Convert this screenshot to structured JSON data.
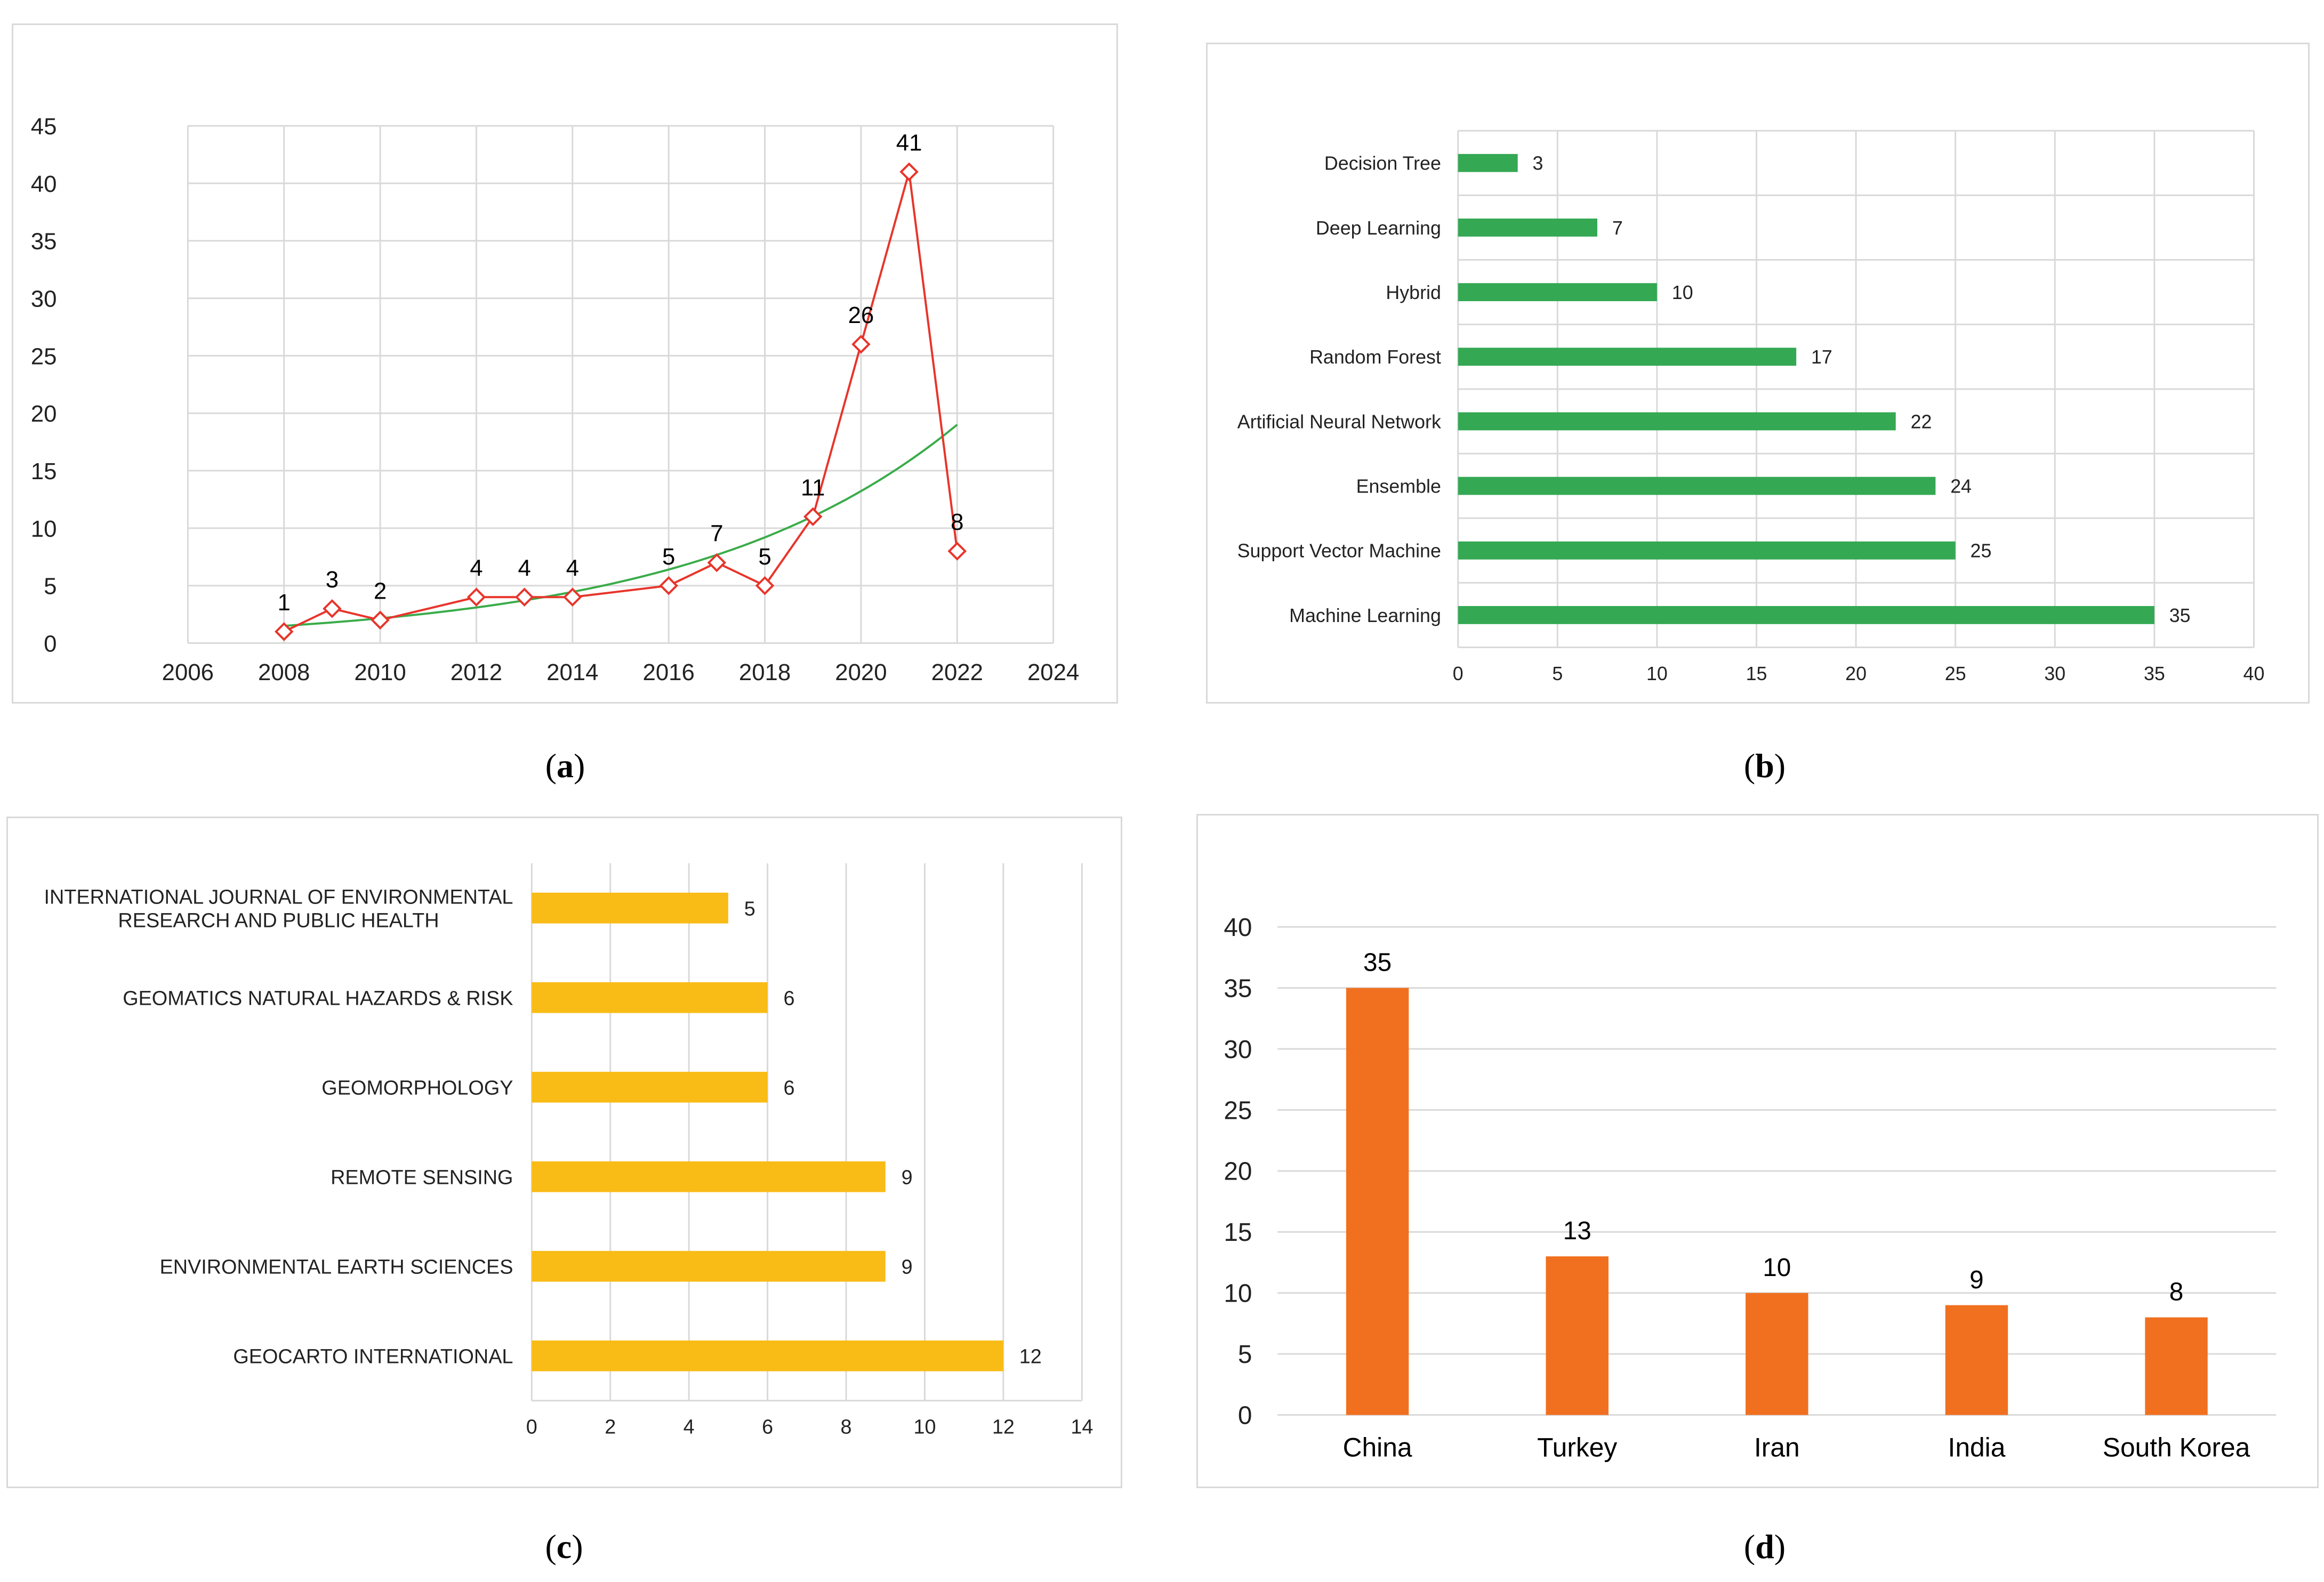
{
  "colors": {
    "red_line": "#e8352b",
    "trend_line": "#3aac4a",
    "green_bar": "#34a853",
    "yellow_bar": "#f9bb16",
    "orange_bar": "#f07020",
    "grid": "#d9d9d9",
    "axis_text": "#222222"
  },
  "chart_data": [
    {
      "id": "a",
      "type": "line",
      "title": "",
      "xlabel": "",
      "ylabel": "",
      "x": [
        2008,
        2009,
        2010,
        2012,
        2013,
        2014,
        2016,
        2017,
        2018,
        2019,
        2020,
        2021,
        2022
      ],
      "values": [
        1,
        3,
        2,
        4,
        4,
        4,
        5,
        7,
        5,
        11,
        26,
        41,
        8
      ],
      "data_labels": [
        "1",
        "3",
        "2",
        "4",
        "4",
        "4",
        "5",
        "7",
        "5",
        "11",
        "26",
        "41",
        "8"
      ],
      "trendline": {
        "type": "exponential",
        "x_start": 2008,
        "x_end": 2022,
        "y_start": 1.5,
        "y_end": 19
      },
      "xlim": [
        2006,
        2024
      ],
      "ylim": [
        0,
        45
      ],
      "x_ticks": [
        "2006",
        "2008",
        "2010",
        "2012",
        "2014",
        "2016",
        "2018",
        "2020",
        "2022",
        "2024"
      ],
      "y_ticks": [
        "0",
        "5",
        "10",
        "15",
        "20",
        "25",
        "30",
        "35",
        "40",
        "45"
      ],
      "grid": true,
      "marker": "diamond",
      "caption_letter": "a"
    },
    {
      "id": "b",
      "type": "bar",
      "orientation": "horizontal",
      "title": "",
      "categories": [
        "Decision Tree",
        "Deep Learning",
        "Hybrid",
        "Random Forest",
        "Artificial Neural Network",
        "Ensemble",
        "Support Vector Machine",
        "Machine Learning"
      ],
      "values": [
        3,
        7,
        10,
        17,
        22,
        24,
        25,
        35
      ],
      "data_labels": [
        "3",
        "7",
        "10",
        "17",
        "22",
        "24",
        "25",
        "35"
      ],
      "xlim": [
        0,
        40
      ],
      "x_ticks": [
        "0",
        "5",
        "10",
        "15",
        "20",
        "25",
        "30",
        "35",
        "40"
      ],
      "grid": true,
      "caption_letter": "b"
    },
    {
      "id": "c",
      "type": "bar",
      "orientation": "horizontal",
      "title": "",
      "categories": [
        [
          "INTERNATIONAL JOURNAL OF ENVIRONMENTAL",
          "RESEARCH AND PUBLIC HEALTH"
        ],
        [
          "GEOMATICS NATURAL HAZARDS & RISK"
        ],
        [
          "GEOMORPHOLOGY"
        ],
        [
          "REMOTE SENSING"
        ],
        [
          "ENVIRONMENTAL EARTH SCIENCES"
        ],
        [
          "GEOCARTO INTERNATIONAL"
        ]
      ],
      "values": [
        5,
        6,
        6,
        9,
        9,
        12
      ],
      "data_labels": [
        "5",
        "6",
        "6",
        "9",
        "9",
        "12"
      ],
      "xlim": [
        0,
        14
      ],
      "x_ticks": [
        "0",
        "2",
        "4",
        "6",
        "8",
        "10",
        "12",
        "14"
      ],
      "grid": true,
      "caption_letter": "c"
    },
    {
      "id": "d",
      "type": "bar",
      "orientation": "vertical",
      "title": "",
      "categories": [
        "China",
        "Turkey",
        "Iran",
        "India",
        "South Korea"
      ],
      "values": [
        35,
        13,
        10,
        9,
        8
      ],
      "data_labels": [
        "35",
        "13",
        "10",
        "9",
        "8"
      ],
      "ylim": [
        0,
        40
      ],
      "y_ticks": [
        "0",
        "5",
        "10",
        "15",
        "20",
        "25",
        "30",
        "35",
        "40"
      ],
      "grid": true,
      "caption_letter": "d"
    }
  ]
}
